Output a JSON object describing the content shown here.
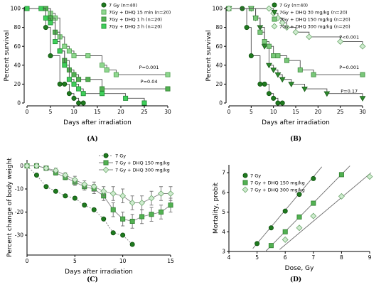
{
  "palette": {
    "dark_green": "#1f7a1f",
    "dark_green_stroke": "#0b4d0b",
    "mid_green": "#52b152",
    "mid_green_stroke": "#2d7d2d",
    "light_green": "#8fd78f",
    "light_green_stroke": "#4a9e4a",
    "pale_green": "#cfeccf",
    "pale_green_stroke": "#6aa56a",
    "line_gray": "#707070"
  },
  "chart_data": [
    {
      "id": "A",
      "type": "line",
      "panel_label": "(A)",
      "xlabel": "Days after irradiation",
      "ylabel": "Percent survival",
      "xlim": [
        0,
        30
      ],
      "ylim": [
        0,
        100
      ],
      "xticks": [
        "0",
        "5",
        "10",
        "15",
        "20",
        "25",
        "30"
      ],
      "yticks": [
        "0",
        "20",
        "40",
        "60",
        "80",
        "100"
      ],
      "step": true,
      "grid": false,
      "legend_position": "top-center",
      "series": [
        {
          "name": "7 Gy (n=40)",
          "marker": "circle",
          "color": "#1f7a1f",
          "stroke": "#0b4d0b",
          "x": [
            0,
            3,
            4,
            5,
            7,
            8,
            9,
            10,
            11,
            12
          ],
          "y": [
            100,
            100,
            80,
            50,
            20,
            20,
            10,
            5,
            0,
            0
          ]
        },
        {
          "name": "7Gy + DHQ 15 min (n=20)",
          "marker": "square",
          "color": "#8fd78f",
          "stroke": "#4a9e4a",
          "x": [
            0,
            4,
            5,
            6,
            7,
            8,
            9,
            10,
            13,
            16,
            17,
            19,
            30
          ],
          "y": [
            100,
            100,
            95,
            90,
            70,
            60,
            55,
            50,
            50,
            40,
            35,
            30,
            30
          ]
        },
        {
          "name": "7Gy + DHQ 1 h (n=20)",
          "marker": "square",
          "color": "#52b152",
          "stroke": "#2d7d2d",
          "x": [
            0,
            4,
            5,
            6,
            7,
            8,
            9,
            10,
            11,
            13,
            16,
            30
          ],
          "y": [
            100,
            100,
            90,
            75,
            55,
            45,
            35,
            30,
            25,
            25,
            15,
            15
          ]
        },
        {
          "name": "7Gy + DHQ 3 h (n=20)",
          "marker": "square",
          "color": "#3fcf5a",
          "stroke": "#1f8a33",
          "x": [
            0,
            3,
            4,
            5,
            6,
            7,
            8,
            9,
            10,
            11,
            12,
            16,
            21,
            25
          ],
          "y": [
            100,
            100,
            90,
            85,
            65,
            55,
            40,
            25,
            20,
            15,
            10,
            10,
            5,
            0
          ]
        }
      ],
      "annotations": [
        {
          "text": "P=0.001",
          "x": 26,
          "y": 36
        },
        {
          "text": "P=0.04",
          "x": 26,
          "y": 21
        }
      ]
    },
    {
      "id": "B",
      "type": "line",
      "panel_label": "(B)",
      "xlabel": "Days after irradiation",
      "ylabel": "Percent survival",
      "xlim": [
        0,
        30
      ],
      "ylim": [
        0,
        100
      ],
      "xticks": [
        "0",
        "5",
        "10",
        "15",
        "20",
        "25",
        "30"
      ],
      "yticks": [
        "0",
        "20",
        "40",
        "60",
        "80",
        "100"
      ],
      "step": true,
      "grid": false,
      "legend_position": "top-center",
      "series": [
        {
          "name": "7 Gy (n=40)",
          "marker": "circle",
          "color": "#1f7a1f",
          "stroke": "#0b4d0b",
          "x": [
            0,
            3,
            4,
            5,
            7,
            8,
            9,
            10,
            11,
            12
          ],
          "y": [
            100,
            100,
            80,
            50,
            20,
            20,
            10,
            5,
            0,
            0
          ]
        },
        {
          "name": "7Gy + DHQ 30 mg/kg (n=20)",
          "marker": "triangle",
          "color": "#2e8b2e",
          "stroke": "#155915",
          "x": [
            0,
            5,
            6,
            7,
            8,
            9,
            10,
            11,
            12,
            14,
            17,
            22,
            30
          ],
          "y": [
            100,
            100,
            90,
            80,
            60,
            40,
            35,
            30,
            25,
            20,
            15,
            10,
            5
          ]
        },
        {
          "name": "7Gy + DHQ 150 mg/kg (n=20)",
          "marker": "square",
          "color": "#79c779",
          "stroke": "#3d8a3d",
          "x": [
            0,
            5,
            6,
            7,
            8,
            9,
            10,
            11,
            13,
            16,
            19,
            30
          ],
          "y": [
            100,
            100,
            90,
            75,
            65,
            60,
            50,
            50,
            45,
            35,
            30,
            30
          ]
        },
        {
          "name": "7Gy + DHQ 300 mg/kg (n=20)",
          "marker": "diamond",
          "color": "#cfeccf",
          "stroke": "#6aa56a",
          "x": [
            0,
            9,
            10,
            11,
            12,
            13,
            15,
            18,
            25,
            30
          ],
          "y": [
            100,
            100,
            95,
            90,
            85,
            80,
            75,
            70,
            65,
            60
          ]
        }
      ],
      "annotations": [
        {
          "text": "P<0.001",
          "x": 27,
          "y": 68
        },
        {
          "text": "P=0.001",
          "x": 27,
          "y": 36
        },
        {
          "text": "P=0.17",
          "x": 27,
          "y": 11
        }
      ]
    },
    {
      "id": "C",
      "type": "line",
      "panel_label": "(C)",
      "xlabel": "Days after irradiation",
      "ylabel": "Percent change of body weight",
      "xlim": [
        0,
        15
      ],
      "ylim": [
        -38,
        2
      ],
      "xticks": [
        "0",
        "5",
        "10",
        "15"
      ],
      "ytick_values": [
        0,
        -10,
        -20,
        -30
      ],
      "yticks": [
        "0",
        "-10",
        "-20",
        "-30"
      ],
      "grid": false,
      "legend_position": "top-center",
      "series": [
        {
          "name": "7 Gy",
          "marker": "circle",
          "color": "#1f7a1f",
          "stroke": "#0b4d0b",
          "dashed": true,
          "x": [
            0,
            1,
            2,
            3,
            4,
            5,
            6,
            7,
            8,
            9,
            10,
            11
          ],
          "y": [
            0,
            -4,
            -9,
            -11,
            -13,
            -14,
            -17,
            -19,
            -23,
            -29,
            -30,
            -34
          ],
          "err": [
            0,
            0,
            0,
            0,
            0,
            0,
            0,
            0,
            0,
            0,
            0,
            0
          ]
        },
        {
          "name": "7 Gy + DHQ 150 mg/kg",
          "marker": "square",
          "color": "#52b152",
          "stroke": "#2d7d2d",
          "x": [
            0,
            1,
            2,
            3,
            4,
            5,
            6,
            7,
            8,
            9,
            10,
            11,
            12,
            13,
            14,
            15
          ],
          "y": [
            0,
            0,
            -1,
            -3,
            -5,
            -7,
            -9,
            -10,
            -13,
            -19,
            -23,
            -24,
            -22,
            -21,
            -20,
            -17
          ],
          "err": [
            0,
            1,
            1,
            1,
            1,
            1.5,
            1.5,
            2,
            2,
            3,
            3,
            3,
            3,
            3,
            3,
            3
          ]
        },
        {
          "name": "7 Gy + DHQ 300 mg/kg",
          "marker": "diamond",
          "color": "#cfeccf",
          "stroke": "#6aa56a",
          "x": [
            0,
            1,
            2,
            3,
            4,
            5,
            6,
            7,
            8,
            9,
            10,
            11,
            12,
            13,
            14,
            15
          ],
          "y": [
            0,
            0,
            -1,
            -2,
            -4,
            -6,
            -8,
            -9,
            -11,
            -12,
            -13,
            -16,
            -16,
            -14,
            -12,
            -12
          ],
          "err": [
            0,
            1,
            1,
            1,
            1,
            1.5,
            1.5,
            2,
            2,
            3,
            3,
            3,
            3,
            3,
            3,
            3
          ]
        }
      ]
    },
    {
      "id": "D",
      "type": "scatter",
      "panel_label": "(D)",
      "xlabel": "Dose, Gy",
      "ylabel": "Mortality, probit",
      "xlim": [
        4,
        9
      ],
      "ylim": [
        3,
        7.4
      ],
      "xticks": [
        "4",
        "5",
        "6",
        "7",
        "8",
        "9"
      ],
      "ytick_values": [
        3,
        4,
        5,
        6,
        7
      ],
      "yticks": [
        "3",
        "4",
        "5",
        "6",
        "7"
      ],
      "grid": false,
      "legend_position": "top-left",
      "series": [
        {
          "name": "7 Gy",
          "marker": "circle",
          "color": "#1f7a1f",
          "stroke": "#0b4d0b",
          "x": [
            5.0,
            5.5,
            6.0,
            6.5,
            7.0
          ],
          "y": [
            3.4,
            4.2,
            5.05,
            5.9,
            6.7
          ],
          "fit": [
            [
              4.85,
              3.15
            ],
            [
              7.3,
              7.3
            ]
          ]
        },
        {
          "name": "7 Gy + DHQ 150 mg/kg",
          "marker": "square",
          "color": "#52b152",
          "stroke": "#2d7d2d",
          "x": [
            5.5,
            6.0,
            6.5,
            7.0,
            8.0
          ],
          "y": [
            3.3,
            4.0,
            4.75,
            5.45,
            6.9
          ],
          "fit": [
            [
              5.3,
              3.0
            ],
            [
              8.3,
              7.35
            ]
          ]
        },
        {
          "name": "7 Gy + DHQ 300 mg/kg",
          "marker": "diamond",
          "color": "#cfeccf",
          "stroke": "#6aa56a",
          "x": [
            6.0,
            6.5,
            7.0,
            8.0,
            9.0
          ],
          "y": [
            3.6,
            4.2,
            4.8,
            5.8,
            6.8
          ],
          "fit": [
            [
              5.8,
              3.1
            ],
            [
              9.05,
              7.0
            ]
          ]
        }
      ]
    }
  ]
}
